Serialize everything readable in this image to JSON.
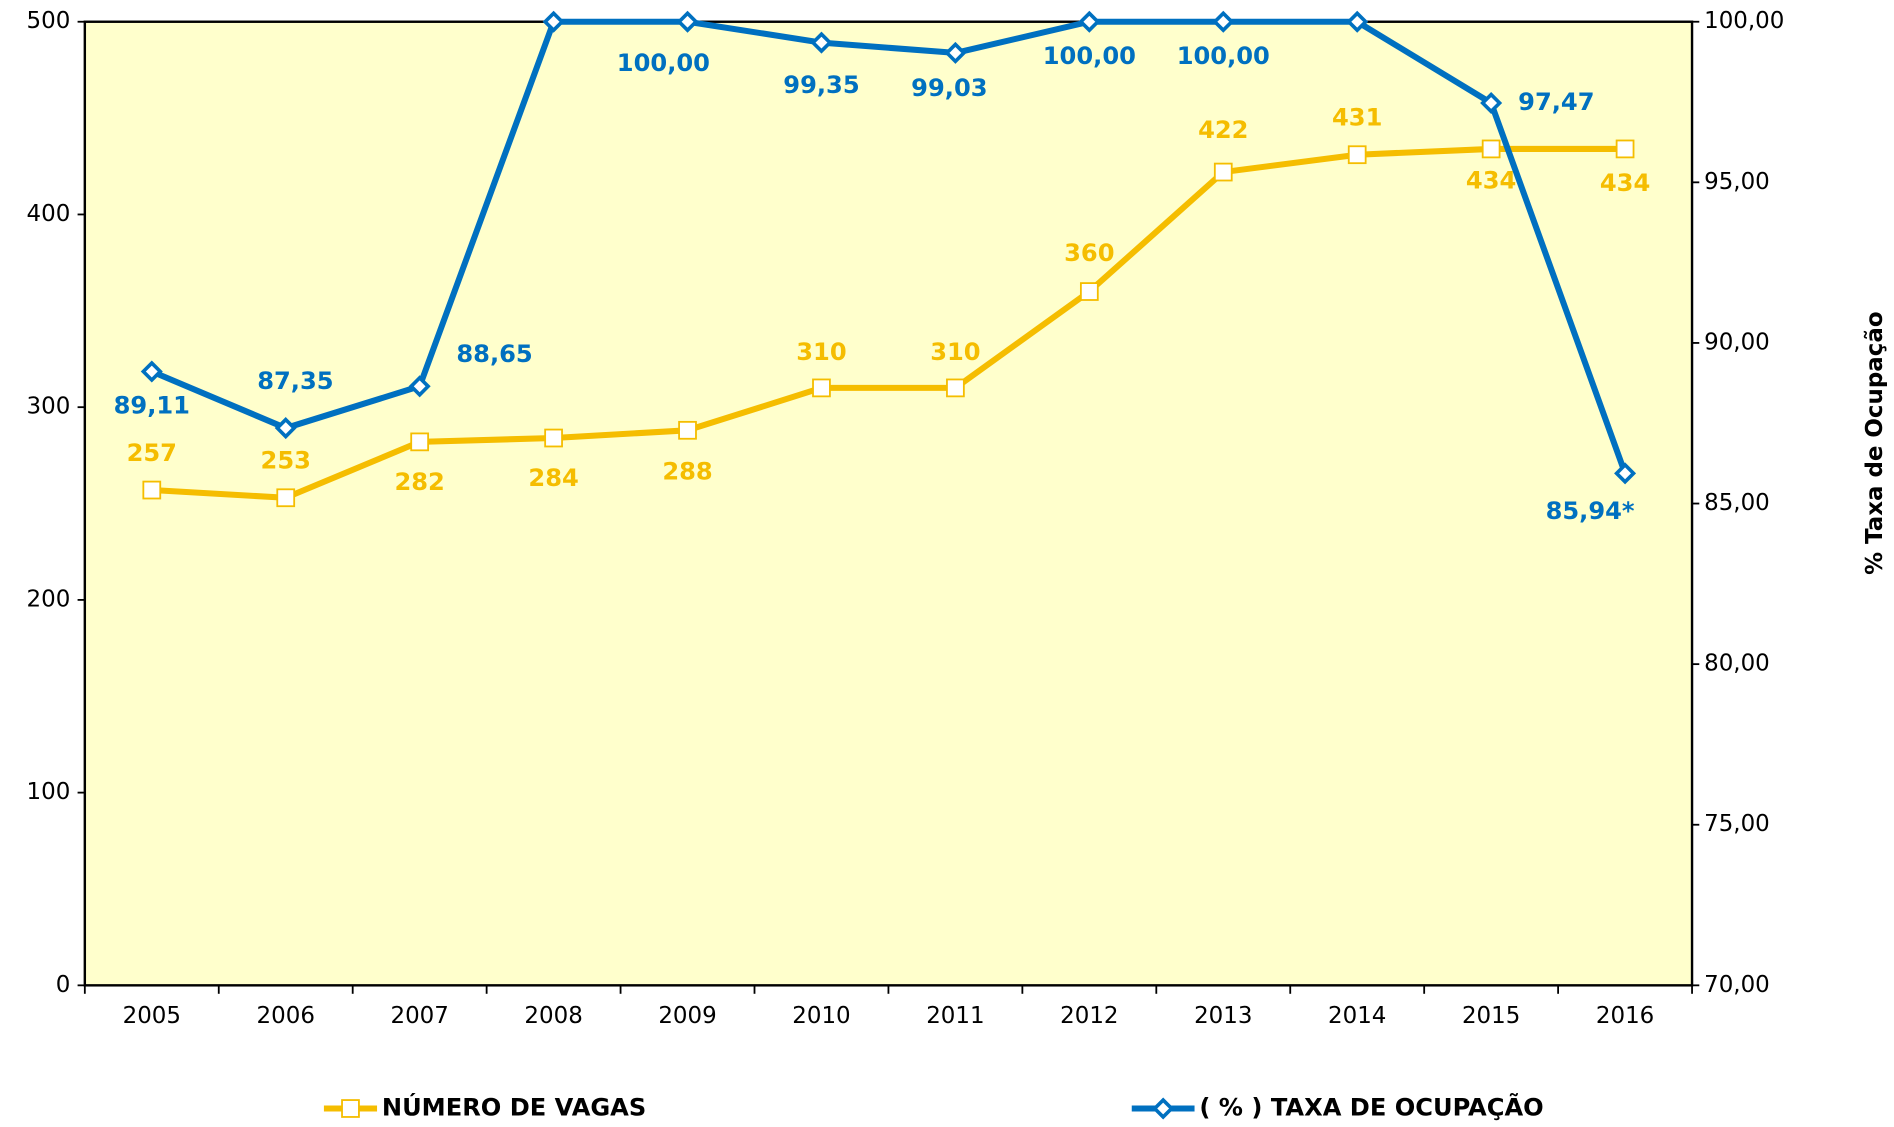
{
  "chart_data": {
    "type": "line",
    "categories": [
      "2005",
      "2006",
      "2007",
      "2008",
      "2009",
      "2010",
      "2011",
      "2012",
      "2013",
      "2014",
      "2015",
      "2016"
    ],
    "series": [
      {
        "name": "NÚMERO DE VAGAS",
        "color": "#f5bd00",
        "values": [
          257,
          253,
          282,
          284,
          288,
          310,
          310,
          360,
          422,
          431,
          434,
          434
        ]
      },
      {
        "name": "( % ) TAXA DE OCUPAÇÃO",
        "color": "#0070c0",
        "axis": "y2",
        "values": [
          89.11,
          87.35,
          88.65,
          100,
          100,
          99.35,
          99.03,
          100,
          100,
          100,
          97.47,
          85.94
        ],
        "value_labels": [
          "89,11",
          "87,35",
          "88,65",
          null,
          "100,00",
          "99,35",
          "99,03",
          "100,00",
          "100,00",
          null,
          "97,47",
          "85,94*"
        ]
      }
    ],
    "ylim": [
      0,
      500
    ],
    "yticks": [
      0,
      100,
      200,
      300,
      400,
      500
    ],
    "y2lim": [
      70,
      100
    ],
    "y2ticks": [
      {
        "value": 70,
        "label": "70,00"
      },
      {
        "value": 75,
        "label": "75,00"
      },
      {
        "value": 80,
        "label": "80,00"
      },
      {
        "value": 85,
        "label": "85,00"
      },
      {
        "value": 90,
        "label": "90,00"
      },
      {
        "value": 95,
        "label": "95,00"
      },
      {
        "value": 100,
        "label": "100,00"
      }
    ],
    "y2label": "% Taxa de Ocupação",
    "background": "#ffffcc"
  }
}
